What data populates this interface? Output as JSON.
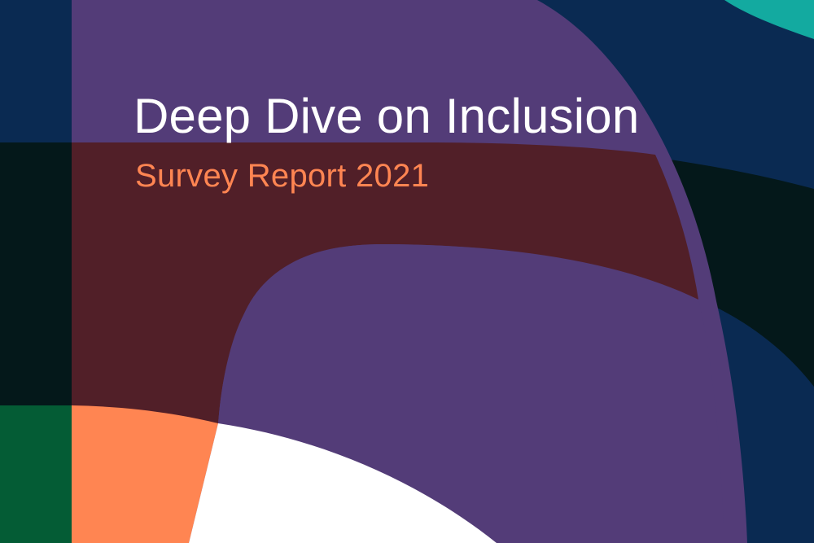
{
  "cover": {
    "title": "Deep Dive on Inclusion",
    "subtitle": "Survey Report 2021"
  },
  "colors": {
    "background_navy": "#0a2a52",
    "band_black": "#04181a",
    "purple": "#533c78",
    "maroon_overlay": "#511f28",
    "orange": "#ff8552",
    "teal": "#13aaa0",
    "green": "#045c35",
    "white": "#ffffff",
    "title_text": "#ffffff",
    "subtitle_text": "#ff8552"
  }
}
